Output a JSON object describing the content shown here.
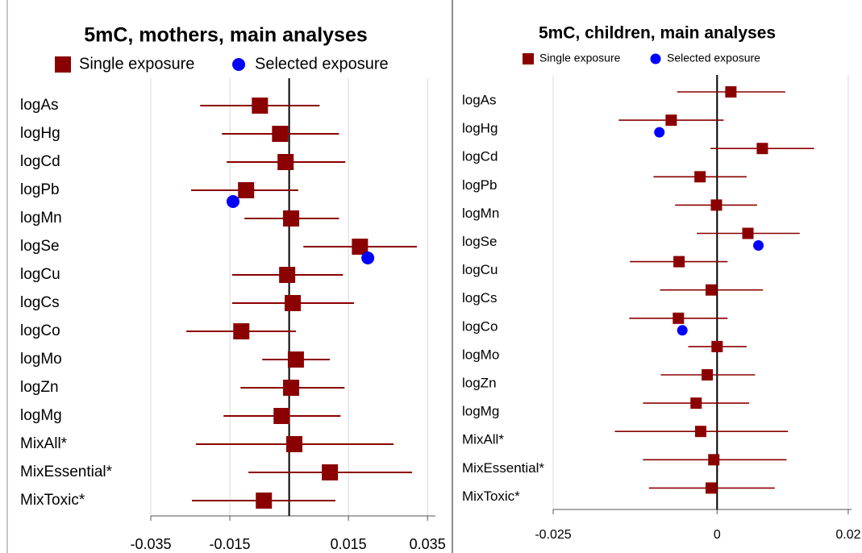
{
  "chart_data": [
    {
      "type": "forest",
      "title": "5mC, mothers, main analyses",
      "categories": [
        "logAs",
        "logHg",
        "logCd",
        "logPb",
        "logMn",
        "logSe",
        "logCu",
        "logCs",
        "logCo",
        "logMo",
        "logZn",
        "logMg",
        "MixAll*",
        "MixEssential*",
        "MixToxic*"
      ],
      "series": [
        {
          "name": "Single exposure",
          "color": "#8b0000",
          "values": [
            -0.0074,
            -0.0023,
            -0.0009,
            -0.0109,
            0.0005,
            0.0179,
            -0.0005,
            0.0009,
            -0.0121,
            0.0017,
            0.0005,
            -0.0019,
            0.0013,
            0.0103,
            -0.0064
          ],
          "ci_low": [
            -0.0225,
            -0.017,
            -0.0158,
            -0.0248,
            -0.0113,
            0.0036,
            -0.0144,
            -0.0144,
            -0.026,
            -0.0068,
            -0.0123,
            -0.0166,
            -0.0236,
            -0.0103,
            -0.0246
          ],
          "ci_high": [
            0.0077,
            0.0126,
            0.0142,
            0.0023,
            0.0126,
            0.0323,
            0.0136,
            0.0164,
            0.0017,
            0.0103,
            0.014,
            0.013,
            0.0264,
            0.0311,
            0.0117
          ]
        },
        {
          "name": "Selected exposure",
          "color": "#0000ff",
          "values": [
            null,
            null,
            null,
            -0.0142,
            null,
            0.0199,
            null,
            null,
            null,
            null,
            null,
            null,
            null,
            null,
            null
          ]
        }
      ],
      "xlim": [
        -0.035,
        0.037
      ],
      "xticks": [
        -0.035,
        -0.015,
        0.015,
        0.035
      ],
      "grid": true
    },
    {
      "type": "forest",
      "title": "5mC, children, main analyses",
      "categories": [
        "logAs",
        "logHg",
        "logCd",
        "logPb",
        "logMn",
        "logSe",
        "logCu",
        "logCs",
        "logCo",
        "logMo",
        "logZn",
        "logMg",
        "MixAll*",
        "MixEssential*",
        "MixToxic*"
      ],
      "series": [
        {
          "name": "Single exposure",
          "color": "#8b0000",
          "values": [
            0.0021,
            -0.007,
            0.0069,
            -0.0026,
            -0.0001,
            0.0047,
            -0.0058,
            -0.0009,
            -0.0059,
            0,
            -0.0015,
            -0.0032,
            -0.0025,
            -0.0005,
            -0.0009
          ],
          "ci_low": [
            -0.0061,
            -0.015,
            -0.001,
            -0.0097,
            -0.0064,
            -0.0031,
            -0.0133,
            -0.0087,
            -0.0134,
            -0.0044,
            -0.0086,
            -0.0113,
            -0.0156,
            -0.0113,
            -0.0104
          ],
          "ci_high": [
            0.0104,
            0.001,
            0.0148,
            0.0045,
            0.0061,
            0.0126,
            0.0016,
            0.007,
            0.0016,
            0.0045,
            0.0058,
            0.0049,
            0.0108,
            0.0106,
            0.0088
          ]
        },
        {
          "name": "Selected exposure",
          "color": "#0000ff",
          "values": [
            null,
            -0.0088,
            null,
            null,
            null,
            0.0063,
            null,
            null,
            -0.0053,
            null,
            null,
            null,
            null,
            null,
            null
          ]
        }
      ],
      "xlim": [
        -0.025,
        0.0205
      ],
      "xticks": [
        -0.025,
        0,
        0.02
      ],
      "grid": true
    }
  ]
}
